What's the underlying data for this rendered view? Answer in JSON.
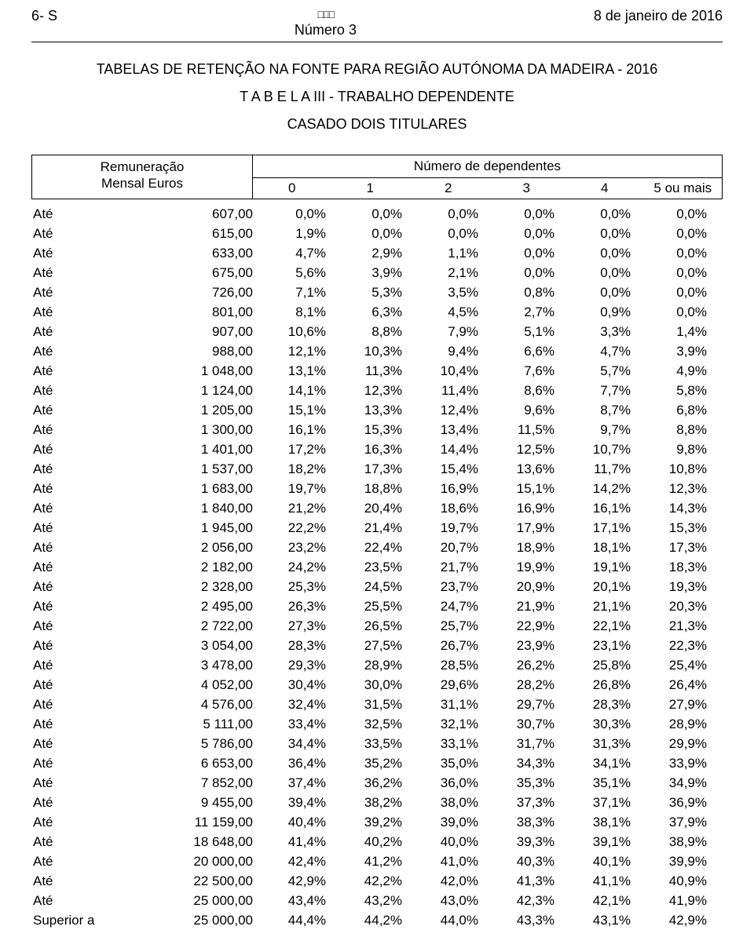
{
  "header": {
    "left": "6- S",
    "center_top_icon": "□□□",
    "center_line": "Número 3",
    "right": "8 de janeiro de 2016"
  },
  "titles": {
    "t1": "TABELAS DE RETENÇÃO NA FONTE PARA  REGIÃO AUTÓNOMA DA MADEIRA - 2016",
    "t2": "T A B E L A   III - TRABALHO DEPENDENTE",
    "t3": "CASADO DOIS TITULARES"
  },
  "table_header": {
    "left_top": "Remuneração",
    "left_bottom": "Mensal  Euros",
    "right_top": "Número de dependentes",
    "cols": [
      "0",
      "1",
      "2",
      "3",
      "4",
      "5 ou mais"
    ]
  },
  "rows": [
    {
      "lbl": "Até",
      "amt": "607,00",
      "c": [
        "0,0%",
        "0,0%",
        "0,0%",
        "0,0%",
        "0,0%",
        "0,0%"
      ]
    },
    {
      "lbl": "Até",
      "amt": "615,00",
      "c": [
        "1,9%",
        "0,0%",
        "0,0%",
        "0,0%",
        "0,0%",
        "0,0%"
      ]
    },
    {
      "lbl": "Até",
      "amt": "633,00",
      "c": [
        "4,7%",
        "2,9%",
        "1,1%",
        "0,0%",
        "0,0%",
        "0,0%"
      ]
    },
    {
      "lbl": "Até",
      "amt": "675,00",
      "c": [
        "5,6%",
        "3,9%",
        "2,1%",
        "0,0%",
        "0,0%",
        "0,0%"
      ]
    },
    {
      "lbl": "Até",
      "amt": "726,00",
      "c": [
        "7,1%",
        "5,3%",
        "3,5%",
        "0,8%",
        "0,0%",
        "0,0%"
      ]
    },
    {
      "lbl": "Até",
      "amt": "801,00",
      "c": [
        "8,1%",
        "6,3%",
        "4,5%",
        "2,7%",
        "0,9%",
        "0,0%"
      ]
    },
    {
      "lbl": "Até",
      "amt": "907,00",
      "c": [
        "10,6%",
        "8,8%",
        "7,9%",
        "5,1%",
        "3,3%",
        "1,4%"
      ]
    },
    {
      "lbl": "Até",
      "amt": "988,00",
      "c": [
        "12,1%",
        "10,3%",
        "9,4%",
        "6,6%",
        "4,7%",
        "3,9%"
      ]
    },
    {
      "lbl": "Até",
      "amt": "1 048,00",
      "c": [
        "13,1%",
        "11,3%",
        "10,4%",
        "7,6%",
        "5,7%",
        "4,9%"
      ]
    },
    {
      "lbl": "Até",
      "amt": "1 124,00",
      "c": [
        "14,1%",
        "12,3%",
        "11,4%",
        "8,6%",
        "7,7%",
        "5,8%"
      ]
    },
    {
      "lbl": "Até",
      "amt": "1 205,00",
      "c": [
        "15,1%",
        "13,3%",
        "12,4%",
        "9,6%",
        "8,7%",
        "6,8%"
      ]
    },
    {
      "lbl": "Até",
      "amt": "1 300,00",
      "c": [
        "16,1%",
        "15,3%",
        "13,4%",
        "11,5%",
        "9,7%",
        "8,8%"
      ]
    },
    {
      "lbl": "Até",
      "amt": "1 401,00",
      "c": [
        "17,2%",
        "16,3%",
        "14,4%",
        "12,5%",
        "10,7%",
        "9,8%"
      ]
    },
    {
      "lbl": "Até",
      "amt": "1 537,00",
      "c": [
        "18,2%",
        "17,3%",
        "15,4%",
        "13,6%",
        "11,7%",
        "10,8%"
      ]
    },
    {
      "lbl": "Até",
      "amt": "1 683,00",
      "c": [
        "19,7%",
        "18,8%",
        "16,9%",
        "15,1%",
        "14,2%",
        "12,3%"
      ]
    },
    {
      "lbl": "Até",
      "amt": "1 840,00",
      "c": [
        "21,2%",
        "20,4%",
        "18,6%",
        "16,9%",
        "16,1%",
        "14,3%"
      ]
    },
    {
      "lbl": "Até",
      "amt": "1 945,00",
      "c": [
        "22,2%",
        "21,4%",
        "19,7%",
        "17,9%",
        "17,1%",
        "15,3%"
      ]
    },
    {
      "lbl": "Até",
      "amt": "2 056,00",
      "c": [
        "23,2%",
        "22,4%",
        "20,7%",
        "18,9%",
        "18,1%",
        "17,3%"
      ]
    },
    {
      "lbl": "Até",
      "amt": "2 182,00",
      "c": [
        "24,2%",
        "23,5%",
        "21,7%",
        "19,9%",
        "19,1%",
        "18,3%"
      ]
    },
    {
      "lbl": "Até",
      "amt": "2 328,00",
      "c": [
        "25,3%",
        "24,5%",
        "23,7%",
        "20,9%",
        "20,1%",
        "19,3%"
      ]
    },
    {
      "lbl": "Até",
      "amt": "2 495,00",
      "c": [
        "26,3%",
        "25,5%",
        "24,7%",
        "21,9%",
        "21,1%",
        "20,3%"
      ]
    },
    {
      "lbl": "Até",
      "amt": "2 722,00",
      "c": [
        "27,3%",
        "26,5%",
        "25,7%",
        "22,9%",
        "22,1%",
        "21,3%"
      ]
    },
    {
      "lbl": "Até",
      "amt": "3 054,00",
      "c": [
        "28,3%",
        "27,5%",
        "26,7%",
        "23,9%",
        "23,1%",
        "22,3%"
      ]
    },
    {
      "lbl": "Até",
      "amt": "3 478,00",
      "c": [
        "29,3%",
        "28,9%",
        "28,5%",
        "26,2%",
        "25,8%",
        "25,4%"
      ]
    },
    {
      "lbl": "Até",
      "amt": "4 052,00",
      "c": [
        "30,4%",
        "30,0%",
        "29,6%",
        "28,2%",
        "26,8%",
        "26,4%"
      ]
    },
    {
      "lbl": "Até",
      "amt": "4 576,00",
      "c": [
        "32,4%",
        "31,5%",
        "31,1%",
        "29,7%",
        "28,3%",
        "27,9%"
      ]
    },
    {
      "lbl": "Até",
      "amt": "5 111,00",
      "c": [
        "33,4%",
        "32,5%",
        "32,1%",
        "30,7%",
        "30,3%",
        "28,9%"
      ]
    },
    {
      "lbl": "Até",
      "amt": "5 786,00",
      "c": [
        "34,4%",
        "33,5%",
        "33,1%",
        "31,7%",
        "31,3%",
        "29,9%"
      ]
    },
    {
      "lbl": "Até",
      "amt": "6 653,00",
      "c": [
        "36,4%",
        "35,2%",
        "35,0%",
        "34,3%",
        "34,1%",
        "33,9%"
      ]
    },
    {
      "lbl": "Até",
      "amt": "7 852,00",
      "c": [
        "37,4%",
        "36,2%",
        "36,0%",
        "35,3%",
        "35,1%",
        "34,9%"
      ]
    },
    {
      "lbl": "Até",
      "amt": "9 455,00",
      "c": [
        "39,4%",
        "38,2%",
        "38,0%",
        "37,3%",
        "37,1%",
        "36,9%"
      ]
    },
    {
      "lbl": "Até",
      "amt": "11 159,00",
      "c": [
        "40,4%",
        "39,2%",
        "39,0%",
        "38,3%",
        "38,1%",
        "37,9%"
      ]
    },
    {
      "lbl": "Até",
      "amt": "18 648,00",
      "c": [
        "41,4%",
        "40,2%",
        "40,0%",
        "39,3%",
        "39,1%",
        "38,9%"
      ]
    },
    {
      "lbl": "Até",
      "amt": "20 000,00",
      "c": [
        "42,4%",
        "41,2%",
        "41,0%",
        "40,3%",
        "40,1%",
        "39,9%"
      ]
    },
    {
      "lbl": "Até",
      "amt": "22 500,00",
      "c": [
        "42,9%",
        "42,2%",
        "42,0%",
        "41,3%",
        "41,1%",
        "40,9%"
      ]
    },
    {
      "lbl": "Até",
      "amt": "25 000,00",
      "c": [
        "43,4%",
        "43,2%",
        "43,0%",
        "42,3%",
        "42,1%",
        "41,9%"
      ]
    },
    {
      "lbl": "Superior a",
      "amt": "25 000,00",
      "c": [
        "44,4%",
        "44,2%",
        "44,0%",
        "43,3%",
        "43,1%",
        "42,9%"
      ]
    }
  ]
}
